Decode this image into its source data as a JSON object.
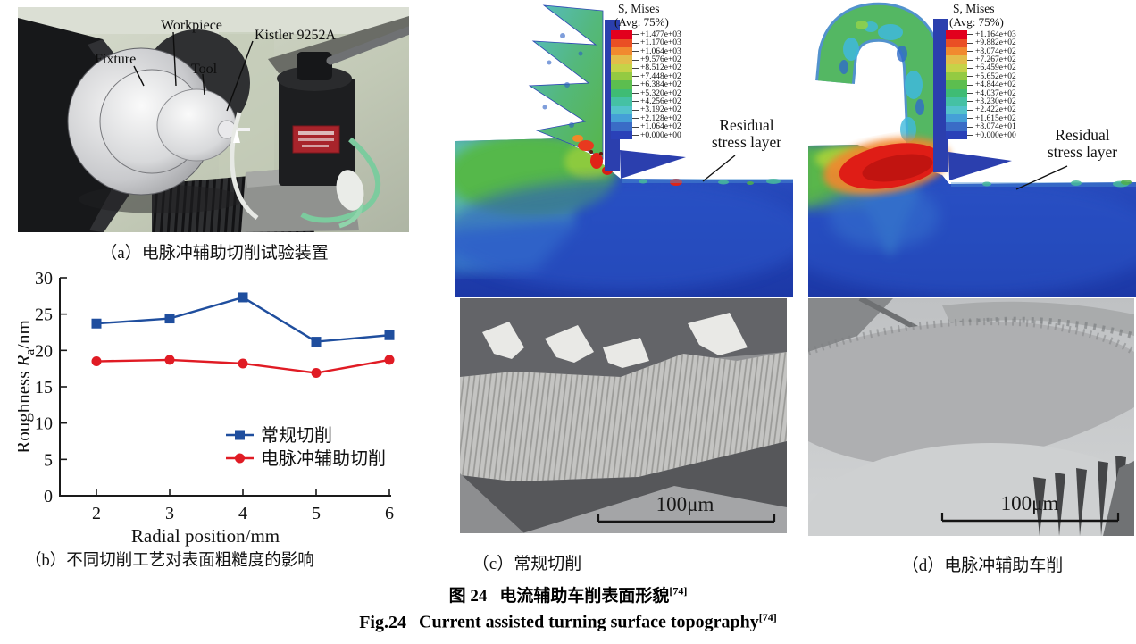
{
  "panel_a": {
    "caption": "（a）电脉冲辅助切削试验装置",
    "labels": {
      "fixture": "Fixture",
      "workpiece": "Workpiece",
      "tool": "Tool",
      "dynamometer": "Kistler 9252A"
    }
  },
  "chart_data": {
    "type": "line",
    "x": [
      2,
      3,
      4,
      5,
      6
    ],
    "xticks": [
      "2",
      "3",
      "4",
      "5",
      "6"
    ],
    "yticks": [
      "0",
      "5",
      "10",
      "15",
      "20",
      "25",
      "30"
    ],
    "xlim": [
      2,
      6
    ],
    "ylim": [
      0,
      30
    ],
    "grid": false,
    "legend_position": "inside-right",
    "xlabel": "Radial position/mm",
    "ylabel": "Roughness Ra/nm",
    "ylabel_parts": {
      "pre": "Roughness ",
      "r": "R",
      "sub": "a",
      "post": "/nm"
    },
    "series": [
      {
        "name": "常规切削",
        "color": "#1f4e9e",
        "marker": "square",
        "values": [
          23.7,
          24.4,
          27.3,
          21.2,
          22.1
        ]
      },
      {
        "name": "电脉冲辅助切削",
        "color": "#e01b24",
        "marker": "circle",
        "values": [
          18.5,
          18.7,
          18.2,
          16.9,
          18.7
        ]
      }
    ]
  },
  "panel_b": {
    "caption": "（b）不同切削工艺对表面粗糙度的影响"
  },
  "panel_c": {
    "caption": "（c）常规切削",
    "fem": {
      "legend_title": "S, Mises",
      "legend_subtitle": "(Avg: 75%)",
      "legend_values": [
        "+1.477e+03",
        "+1.170e+03",
        "+1.064e+03",
        "+9.576e+02",
        "+8.512e+02",
        "+7.448e+02",
        "+6.384e+02",
        "+5.320e+02",
        "+4.256e+02",
        "+3.192e+02",
        "+2.128e+02",
        "+1.064e+02",
        "+0.000e+00"
      ]
    },
    "annotation_line1": "Residual",
    "annotation_line2": "stress layer",
    "scale_bar_label": "100μm"
  },
  "panel_d": {
    "caption": "（d）电脉冲辅助车削",
    "fem": {
      "legend_title": "S, Mises",
      "legend_subtitle": "(Avg: 75%)",
      "legend_values": [
        "+1.164e+03",
        "+9.882e+02",
        "+8.074e+02",
        "+7.267e+02",
        "+6.459e+02",
        "+5.652e+02",
        "+4.844e+02",
        "+4.037e+02",
        "+3.230e+02",
        "+2.422e+02",
        "+1.615e+02",
        "+8.074e+01",
        "+0.000e+00"
      ]
    },
    "annotation_line1": "Residual",
    "annotation_line2": "stress layer",
    "scale_bar_label": "100μm"
  },
  "figure_caption": {
    "zh_label": "图 24",
    "zh_title": "电流辅助车削表面形貌",
    "en_label": "Fig.24",
    "en_title": "Current assisted turning surface topography",
    "reference": "[74]"
  },
  "colors": {
    "series_blue": "#1f4e9e",
    "series_red": "#e01b24",
    "tool_blue": "#2b3fae",
    "abaqus_palette": [
      "#e2001d",
      "#ea4f24",
      "#f18a2f",
      "#e3bd4a",
      "#c6d348",
      "#94ca42",
      "#5cbe4f",
      "#3fbc74",
      "#45c1a4",
      "#53c3cb",
      "#45a0d7",
      "#3a6cc6",
      "#2a41b8"
    ]
  }
}
